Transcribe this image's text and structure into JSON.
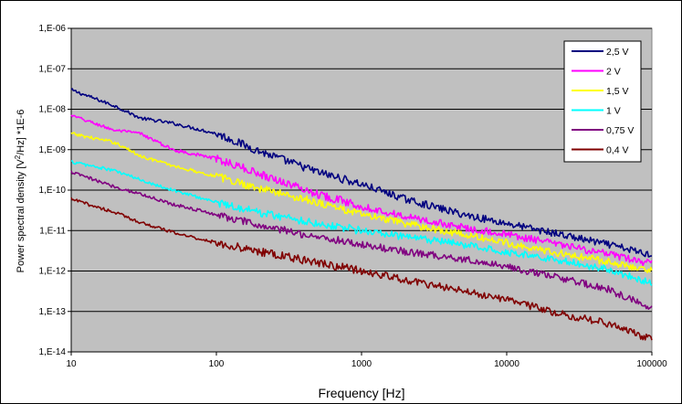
{
  "chart_data": {
    "type": "line",
    "xlabel": "Frequency  [Hz]",
    "ylabel_prefix": "Power spectral density [V",
    "ylabel_sup": "2",
    "ylabel_suffix": "/Hz] *1E-6",
    "x_scale": "log",
    "y_scale": "log",
    "xlim": [
      10,
      100000
    ],
    "ylim": [
      1e-14,
      1e-06
    ],
    "x_ticks": [
      10,
      100,
      1000,
      10000,
      100000
    ],
    "x_tick_labels": [
      "10",
      "100",
      "1000",
      "10000",
      "100000"
    ],
    "y_ticks": [
      1e-06,
      1e-07,
      1e-08,
      1e-09,
      1e-10,
      1e-11,
      1e-12,
      1e-13,
      1e-14
    ],
    "y_tick_labels": [
      "1,E-06",
      "1,E-07",
      "1,E-08",
      "1,E-09",
      "1,E-10",
      "1,E-11",
      "1,E-12",
      "1,E-13",
      "1,E-14"
    ],
    "grid": "horizontal",
    "plot_background": "#c0c0c0",
    "legend_position": "top-right",
    "series": [
      {
        "name": "2,5 V",
        "color": "#000080",
        "x": [
          10,
          20,
          30,
          50,
          100,
          200,
          500,
          1000,
          2000,
          5000,
          10000,
          20000,
          50000,
          100000
        ],
        "y": [
          3e-08,
          1.2e-08,
          6e-09,
          4.5e-09,
          2.5e-09,
          9e-10,
          2.8e-10,
          1.4e-10,
          6e-11,
          2.5e-11,
          1.5e-11,
          9e-12,
          4.5e-12,
          2.5e-12
        ]
      },
      {
        "name": "2 V",
        "color": "#ff00ff",
        "x": [
          10,
          20,
          30,
          50,
          100,
          200,
          500,
          1000,
          2000,
          5000,
          10000,
          20000,
          50000,
          100000
        ],
        "y": [
          7e-09,
          3e-09,
          2.5e-09,
          1e-09,
          6e-10,
          2.5e-10,
          8e-11,
          4e-11,
          2.2e-11,
          1.2e-11,
          8e-12,
          5e-12,
          2.6e-12,
          1.5e-12
        ]
      },
      {
        "name": "1,5 V",
        "color": "#ffff00",
        "x": [
          10,
          20,
          30,
          50,
          100,
          200,
          500,
          1000,
          2000,
          5000,
          10000,
          20000,
          50000,
          100000
        ],
        "y": [
          2.5e-09,
          1.5e-09,
          7e-10,
          4e-10,
          2.2e-10,
          1.1e-10,
          5e-11,
          2.5e-11,
          1.5e-11,
          8e-12,
          5e-12,
          3e-12,
          1.7e-12,
          1e-12
        ]
      },
      {
        "name": "1 V",
        "color": "#00ffff",
        "x": [
          10,
          20,
          30,
          50,
          100,
          200,
          500,
          1000,
          2000,
          5000,
          10000,
          20000,
          50000,
          100000
        ],
        "y": [
          5e-10,
          3e-10,
          1.8e-10,
          1e-10,
          5e-11,
          2.8e-11,
          1.5e-11,
          1e-11,
          7e-12,
          4.5e-12,
          3e-12,
          2e-12,
          1.1e-12,
          5e-13
        ]
      },
      {
        "name": "0,75 V",
        "color": "#800080",
        "x": [
          10,
          20,
          30,
          50,
          100,
          200,
          500,
          1000,
          2000,
          5000,
          10000,
          20000,
          50000,
          100000
        ],
        "y": [
          2.8e-10,
          1.2e-10,
          8e-11,
          4.5e-11,
          2.5e-11,
          1.3e-11,
          7e-12,
          4.5e-12,
          3e-12,
          2e-12,
          1.3e-12,
          7.5e-13,
          3.5e-13,
          1.2e-13
        ]
      },
      {
        "name": "0,4 V",
        "color": "#800000",
        "x": [
          10,
          20,
          30,
          50,
          100,
          200,
          500,
          1000,
          2000,
          5000,
          10000,
          20000,
          50000,
          100000
        ],
        "y": [
          6e-11,
          2.8e-11,
          1.6e-11,
          9e-12,
          5e-12,
          3e-12,
          1.6e-12,
          1e-12,
          6e-13,
          3.2e-13,
          2e-13,
          1e-13,
          5e-14,
          2e-14
        ]
      }
    ]
  }
}
